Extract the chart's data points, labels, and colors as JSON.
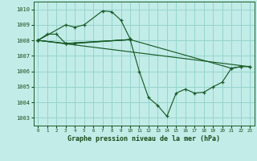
{
  "title": "Graphe pression niveau de la mer (hPa)",
  "bg_color": "#c2ece8",
  "grid_color": "#96d4ce",
  "line_color": "#1a5c28",
  "ylim": [
    1002.5,
    1010.5
  ],
  "xlim": [
    -0.5,
    23.5
  ],
  "yticks": [
    1003,
    1004,
    1005,
    1006,
    1007,
    1008,
    1009,
    1010
  ],
  "xticks": [
    0,
    1,
    2,
    3,
    4,
    5,
    6,
    7,
    8,
    9,
    10,
    11,
    12,
    13,
    14,
    15,
    16,
    17,
    18,
    19,
    20,
    21,
    22,
    23
  ],
  "series": [
    {
      "x": [
        0,
        1,
        2,
        3,
        4,
        10
      ],
      "y": [
        1008.0,
        1008.4,
        1008.4,
        1007.8,
        1007.8,
        1008.05
      ]
    },
    {
      "x": [
        0,
        3,
        4,
        5,
        7,
        8,
        9,
        10
      ],
      "y": [
        1008.0,
        1009.0,
        1008.85,
        1009.0,
        1009.9,
        1009.85,
        1009.3,
        1008.1
      ]
    },
    {
      "x": [
        0,
        3,
        10,
        11,
        12,
        13,
        14,
        15,
        16,
        17,
        18,
        19,
        20,
        21,
        22,
        23
      ],
      "y": [
        1008.0,
        1007.8,
        1008.05,
        1006.0,
        1004.3,
        1003.8,
        1003.1,
        1004.6,
        1004.85,
        1004.6,
        1004.65,
        1005.0,
        1005.3,
        1006.2,
        1006.3,
        1006.3
      ]
    },
    {
      "x": [
        0,
        3,
        10,
        21,
        22
      ],
      "y": [
        1008.0,
        1007.8,
        1008.05,
        1006.2,
        1006.3
      ]
    },
    {
      "x": [
        0,
        23
      ],
      "y": [
        1008.0,
        1006.3
      ]
    }
  ]
}
